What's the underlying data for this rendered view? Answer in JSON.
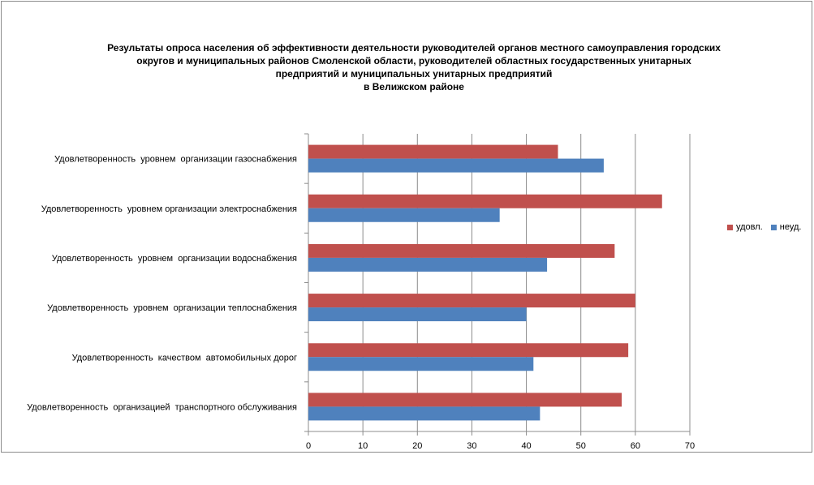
{
  "chart_data": {
    "type": "bar",
    "orientation": "horizontal",
    "title_lines": [
      "Результаты опроса населения об эффективности деятельности руководителей органов местного самоуправления городских",
      "округов и муниципальных районов Смоленской области, руководителей областных государственных унитарных",
      "предприятий и муниципальных унитарных предприятий",
      "в Велижском районе"
    ],
    "categories": [
      "Удовлетворенность  уровнем  организации газоснабжения",
      "Удовлетворенность  уровнем организации электроснабжения",
      "Удовлетворенность  уровнем  организации водоснабжения",
      "Удовлетворенность  уровнем  организации теплоснабжения",
      "Удовлетворенность  качеством  автомобильных дорог",
      "Удовлетворенность  организацией  транспортного обслуживания"
    ],
    "series": [
      {
        "name": "удовл.",
        "color": "#c0504d",
        "values": [
          45.8,
          64.9,
          56.2,
          60.0,
          58.7,
          57.5
        ]
      },
      {
        "name": "неуд.",
        "color": "#4f81bd",
        "values": [
          54.2,
          35.1,
          43.8,
          40.0,
          41.3,
          42.5
        ]
      }
    ],
    "xlim": [
      0,
      70
    ],
    "xticks": [
      0,
      10,
      20,
      30,
      40,
      50,
      60,
      70
    ],
    "grid": true,
    "legend_position": "right"
  }
}
